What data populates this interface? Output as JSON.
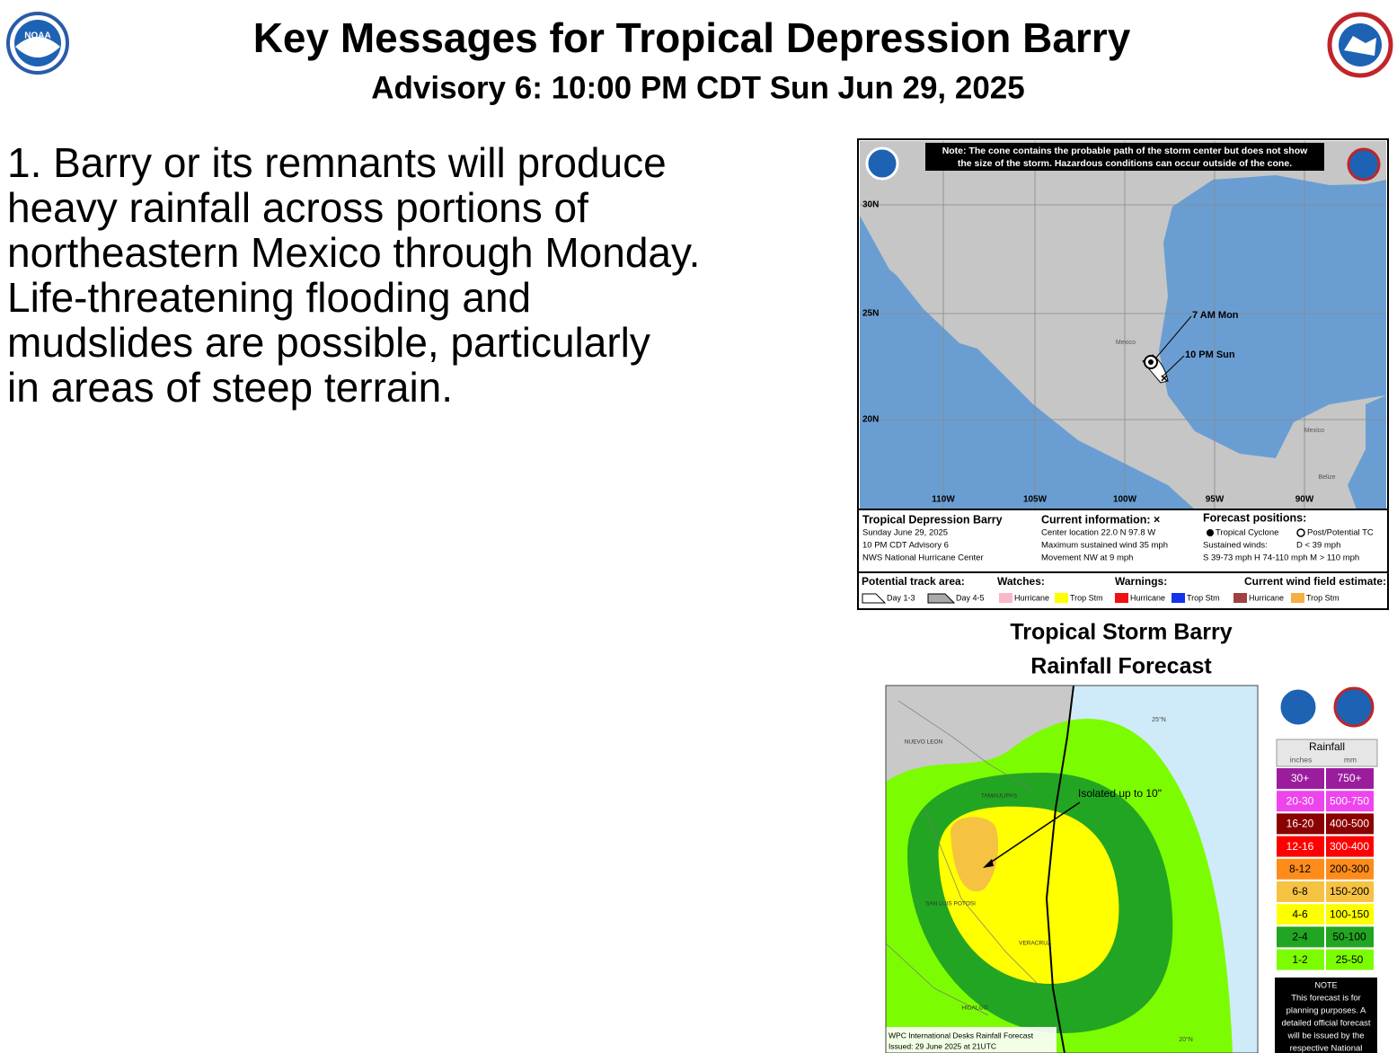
{
  "header": {
    "title": "Key Messages for Tropical Depression Barry",
    "subtitle": "Advisory 6: 10:00 PM CDT Sun Jun 29, 2025",
    "logo": "NOAA"
  },
  "message": {
    "lines": [
      "1. Barry or its remnants will produce",
      "heavy rainfall across portions of",
      "northeastern Mexico through Monday.",
      "Life-threatening flooding and",
      "mudslides are possible, particularly",
      "in areas of steep terrain."
    ]
  },
  "cone_map": {
    "note": [
      "Note: The cone contains the probable path of the storm center but does not show",
      "the size of the storm. Hazardous conditions can occur outside of the cone."
    ],
    "lat_labels": [
      "30N",
      "25N",
      "20N"
    ],
    "lon_labels": [
      "110W",
      "105W",
      "100W",
      "95W",
      "90W"
    ],
    "place_labels": [
      "Mexico",
      "Mexico",
      "Belize"
    ],
    "forecast_labels": [
      "7 AM Mon",
      "10 PM Sun"
    ],
    "storm": {
      "name": "Tropical Depression Barry",
      "lines": [
        "Sunday June 29, 2025",
        "10 PM CDT Advisory 6",
        "NWS National Hurricane Center"
      ]
    },
    "current": {
      "title": "Current information: ×",
      "lines": [
        "Center location 22.0 N 97.8 W",
        "Maximum sustained wind 35 mph",
        "Movement NW at 9 mph"
      ]
    },
    "forecast": {
      "title": "Forecast positions:",
      "items": [
        "Tropical Cyclone",
        "Post/Potential TC"
      ],
      "lines": [
        "Sustained winds:",
        "D < 39 mph",
        "S 39-73 mph  H 74-110 mph  M > 110 mph"
      ]
    },
    "legend": {
      "track": "Potential track area:",
      "day13": "Day 1-3",
      "day45": "Day 4-5",
      "watches": "Watches:",
      "warnings": "Warnings:",
      "wind": "Current wind field estimate:",
      "items": [
        "Hurricane",
        "Trop Stm",
        "Hurricane",
        "Trop Stm",
        "Hurricane",
        "Trop Stm"
      ]
    }
  },
  "rainfall_map": {
    "title": [
      "Tropical Storm Barry",
      "Rainfall Forecast"
    ],
    "annotation": "Isolated up to 10\"",
    "lat_labels": [
      "25°N",
      "20°N"
    ],
    "places": [
      "NUEVO LEON",
      "TAMAULIPAS",
      "SAN LUIS POTOSI",
      "VERACRUZ",
      "HIDALGO"
    ],
    "legend": {
      "title": "Rainfall",
      "units": [
        "inches",
        "mm"
      ],
      "rows": [
        [
          "30+",
          "750+"
        ],
        [
          "20-30",
          "500-750"
        ],
        [
          "16-20",
          "400-500"
        ],
        [
          "12-16",
          "300-400"
        ],
        [
          "8-12",
          "200-300"
        ],
        [
          "6-8",
          "150-200"
        ],
        [
          "4-6",
          "100-150"
        ],
        [
          "2-4",
          "50-100"
        ],
        [
          "1-2",
          "25-50"
        ]
      ]
    },
    "note": [
      "NOTE",
      "This forecast is for",
      "planning purposes. A",
      "detailed official forecast",
      "will be issued by the",
      "respective National"
    ],
    "footer": [
      "WPC International Desks Rainfall Forecast",
      "Issued: 29 June 2025 at 21UTC"
    ]
  }
}
